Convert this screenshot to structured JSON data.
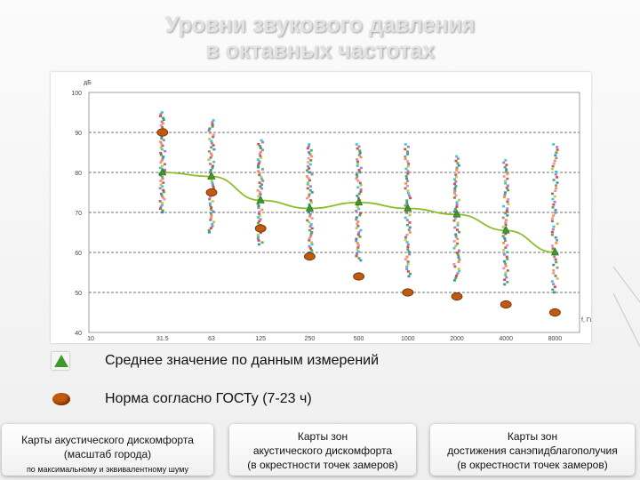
{
  "title": {
    "line1": "Уровни звукового давления",
    "line2": "в октавных частотах"
  },
  "legend": {
    "mean_label": "Среднее значение по данным измерений",
    "norm_label": "Норма согласно ГОСТу (7-23 ч)"
  },
  "footer": {
    "box1_line1": "Карты акустического дискомфорта",
    "box1_line2": "(масштаб города)",
    "box1_line3": "по максимальному и эквивалентному шуму",
    "box2_line1": "Карты зон",
    "box2_line2": "акустического дискомфорта",
    "box2_line3": "(в окрестности точек замеров)",
    "box3_line1": "Карты зон",
    "box3_line2": "достижения санэпидблагополучия",
    "box3_line3": "(в окрестности точек замеров)"
  },
  "colors": {
    "mean_line": "#8bbd2a",
    "mean_marker": "#3c9a2c",
    "norm_marker": "#c05a10",
    "grid": "#444444"
  },
  "chart_data": {
    "type": "scatter",
    "title": "",
    "xlabel": "f, Гц",
    "ylabel": "дБ",
    "x_tick_labels": [
      "10",
      "31.5",
      "63",
      "125",
      "250",
      "500",
      "1000",
      "2000",
      "4000",
      "8000"
    ],
    "categories": [
      "31.5",
      "63",
      "125",
      "250",
      "500",
      "1000",
      "2000",
      "4000",
      "8000"
    ],
    "y_ticks": [
      40,
      50,
      60,
      70,
      80,
      90,
      100
    ],
    "ylim": [
      40,
      100
    ],
    "grid": "horizontal dashed",
    "series": [
      {
        "name": "Среднее значение по данным измерений",
        "style": "line-with-triangles",
        "values": [
          80,
          79,
          73,
          71,
          72.5,
          71,
          69.5,
          65.5,
          60
        ]
      },
      {
        "name": "Норма согласно ГОСТу (7-23 ч)",
        "style": "ellipse-markers",
        "values": [
          90,
          75,
          66,
          59,
          54,
          50,
          49,
          47,
          45
        ]
      }
    ],
    "measurement_ranges": [
      {
        "x": "31.5",
        "min": 70,
        "max": 95
      },
      {
        "x": "63",
        "min": 65,
        "max": 93
      },
      {
        "x": "125",
        "min": 62,
        "max": 88
      },
      {
        "x": "250",
        "min": 60,
        "max": 87
      },
      {
        "x": "500",
        "min": 58,
        "max": 87
      },
      {
        "x": "1000",
        "min": 54,
        "max": 87
      },
      {
        "x": "2000",
        "min": 53,
        "max": 84
      },
      {
        "x": "4000",
        "min": 52,
        "max": 83
      },
      {
        "x": "8000",
        "min": 50,
        "max": 87
      }
    ]
  }
}
